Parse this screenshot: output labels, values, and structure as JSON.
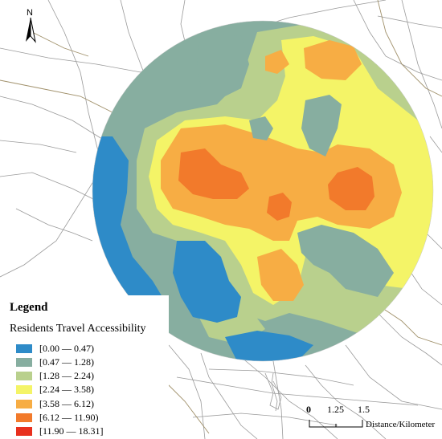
{
  "map": {
    "north_label": "N",
    "legend_title": "Legend",
    "legend_subtitle": "Residents Travel Accessibility",
    "classes": [
      {
        "label": "[0.00 — 0.47)",
        "color": "#2E8BC8"
      },
      {
        "label": "[0.47 — 1.28)",
        "color": "#87AEA0"
      },
      {
        "label": "[1.28 — 2.24)",
        "color": "#B9D08D"
      },
      {
        "label": "[2.24 — 3.58)",
        "color": "#F4F467"
      },
      {
        "label": "[3.58 — 6.12)",
        "color": "#F7AD44"
      },
      {
        "label": "[6.12 — 11.90)",
        "color": "#F27A2B"
      },
      {
        "label": "[11.90 — 18.31]",
        "color": "#E8301E"
      }
    ],
    "scale_ticks": [
      "0",
      "1.25",
      "1.5"
    ],
    "scale_unit": "Distance/Kilometer",
    "road_color": "#9a9a9a",
    "river_color": "#a0906a"
  }
}
